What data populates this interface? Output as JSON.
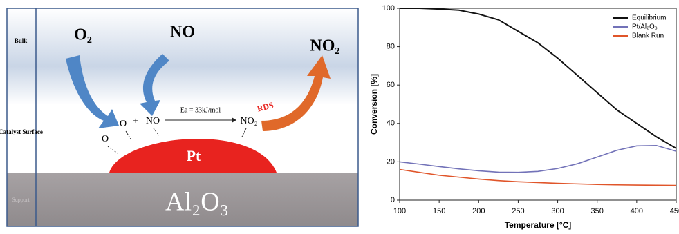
{
  "diagram": {
    "layers": [
      "Bulk",
      "Catalyst Surface",
      "Support"
    ],
    "gas_o2": "O₂",
    "gas_no": "NO",
    "gas_no2": "NO₂",
    "rds": "RDS",
    "activation": "Ea = 33kJ/mol",
    "surface_o": "O",
    "plus": "+",
    "surface_no": "NO",
    "surface_no2": "NO₂",
    "adsorbed_o": "O",
    "particle": "Pt",
    "support": "Al₂O₃"
  },
  "chart_data": {
    "type": "line",
    "x": [
      100,
      125,
      150,
      175,
      200,
      225,
      250,
      275,
      300,
      325,
      350,
      375,
      400,
      425,
      450
    ],
    "series": [
      {
        "name": "Equilibrium",
        "color": "#111111",
        "values": [
          100,
          100,
          99.6,
          99,
          97,
          94,
          88,
          82,
          74,
          65,
          56,
          47,
          40,
          33,
          27
        ]
      },
      {
        "name": "Pt/Al₂O₃",
        "color": "#7272b8",
        "values": [
          20,
          18.8,
          17.5,
          16.3,
          15.3,
          14.6,
          14.5,
          15,
          16.5,
          19,
          22.5,
          26,
          28.3,
          28.5,
          25.5
        ]
      },
      {
        "name": "Blank Run",
        "color": "#e0552a",
        "values": [
          16,
          14.5,
          13,
          12,
          11,
          10.2,
          9.6,
          9.2,
          8.8,
          8.5,
          8.2,
          8,
          7.9,
          7.8,
          7.7
        ]
      }
    ],
    "xlabel": "Temperature [°C]",
    "ylabel": "Conversion [%]",
    "xlim": [
      100,
      450
    ],
    "xticks": [
      100,
      150,
      200,
      250,
      300,
      350,
      400,
      450
    ],
    "ylim": [
      0,
      100
    ],
    "yticks": [
      0,
      20,
      40,
      60,
      80,
      100
    ],
    "legend": "upper right"
  }
}
